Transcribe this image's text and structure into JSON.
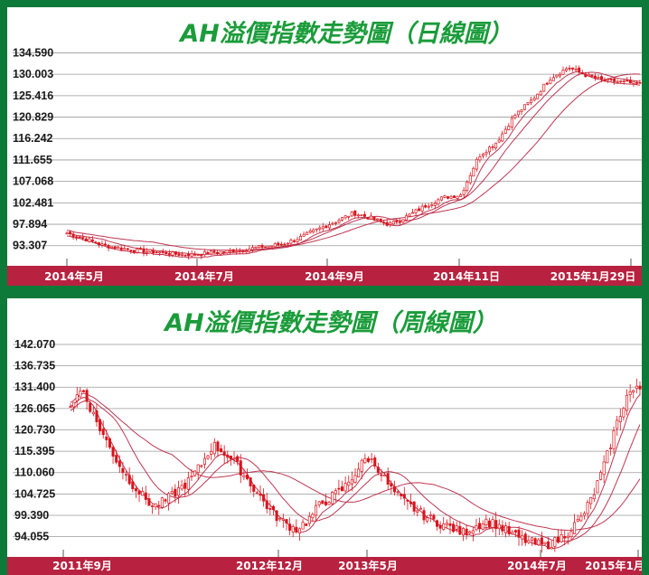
{
  "chart_data": [
    {
      "type": "candlestick",
      "title": "AH溢價指數走勢圖（日線圖）",
      "y_ticks": [
        "134.590",
        "130.003",
        "125.416",
        "120.829",
        "116.242",
        "111.655",
        "107.068",
        "102.481",
        "97.894",
        "93.307"
      ],
      "ylim": [
        89.0,
        137.0
      ],
      "x_labels": [
        "2014年5月",
        "2014年7月",
        "2014年9月",
        "2014年11日",
        "2015年1月29日"
      ],
      "grid": true,
      "candle_color": "#d8141c",
      "band_color": "#b8213f",
      "series": [
        {
          "approx_close": [
            96.0,
            94.8,
            93.4,
            92.8,
            92.2,
            92.0,
            91.5,
            91.4,
            91.8,
            92.1,
            92.6,
            93.1,
            93.6,
            95.0,
            96.8,
            98.5,
            100.3,
            99.2,
            97.8,
            99.6,
            101.8,
            103.6,
            104.2,
            112.5,
            115.5,
            121.2,
            124.6,
            129.2,
            131.5,
            129.8,
            128.6,
            128.4,
            127.8
          ]
        }
      ]
    },
    {
      "type": "candlestick",
      "title": "AH溢價指數走勢圖（周線圖）",
      "y_ticks": [
        "142.070",
        "136.735",
        "131.400",
        "126.065",
        "120.730",
        "115.395",
        "110.060",
        "104.725",
        "99.390",
        "94.055"
      ],
      "ylim": [
        89.0,
        145.0
      ],
      "x_labels": [
        "2011年9月",
        "2012年12月",
        "2013年5月",
        "2014年7月",
        "2015年1月"
      ],
      "grid": true,
      "candle_color": "#d8141c",
      "band_color": "#b8213f",
      "series": [
        {
          "approx_close": [
            127.0,
            131.0,
            124.0,
            118.0,
            112.5,
            108.0,
            104.5,
            101.5,
            103.0,
            105.5,
            108.0,
            112.0,
            117.0,
            115.0,
            112.0,
            108.0,
            104.0,
            100.0,
            97.5,
            96.0,
            98.0,
            102.0,
            104.0,
            106.0,
            110.0,
            114.0,
            111.0,
            106.0,
            103.0,
            101.0,
            99.0,
            97.5,
            96.5,
            95.0,
            96.5,
            98.0,
            97.0,
            95.0,
            93.5,
            92.5,
            91.8,
            93.0,
            95.5,
            98.5,
            104.0,
            112.0,
            122.0,
            130.0,
            131.0
          ]
        }
      ]
    }
  ]
}
